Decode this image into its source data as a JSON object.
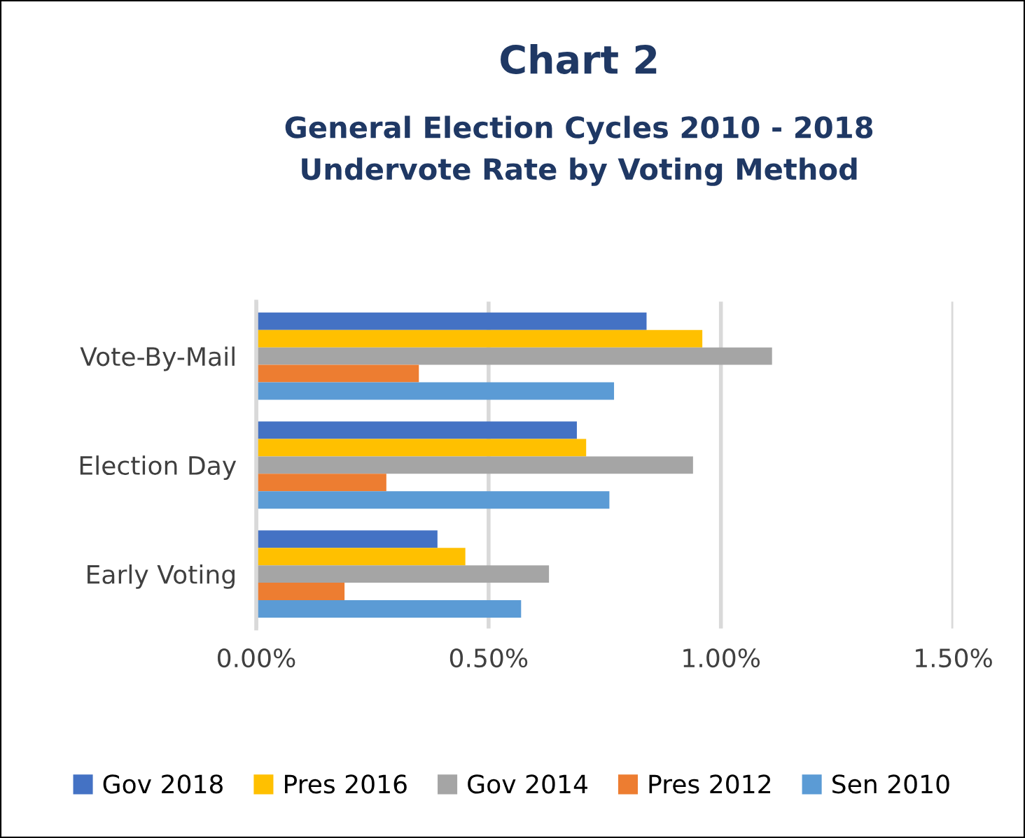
{
  "chart_data": {
    "type": "bar",
    "orientation": "horizontal",
    "title": "Chart 2",
    "subtitle": "General Election Cycles 2010 - 2018\nUndervote Rate by Voting Method",
    "categories": [
      "Vote-By-Mail",
      "Election Day",
      "Early Voting"
    ],
    "series": [
      {
        "name": "Gov 2018",
        "color": "#4472c4",
        "values": [
          0.84,
          0.69,
          0.39
        ]
      },
      {
        "name": "Pres 2016",
        "color": "#ffc000",
        "values": [
          0.96,
          0.71,
          0.45
        ]
      },
      {
        "name": "Gov 2014",
        "color": "#a5a5a5",
        "values": [
          1.11,
          0.94,
          0.63
        ]
      },
      {
        "name": "Pres 2012",
        "color": "#ed7d31",
        "values": [
          0.35,
          0.28,
          0.19
        ]
      },
      {
        "name": "Sen 2010",
        "color": "#5b9bd5",
        "values": [
          0.77,
          0.76,
          0.57
        ]
      }
    ],
    "xlim": [
      0,
      1.5
    ],
    "xticks": [
      {
        "value": 0,
        "label": "0.00%"
      },
      {
        "value": 0.5,
        "label": "0.50%"
      },
      {
        "value": 1.0,
        "label": "1.00%"
      },
      {
        "value": 1.5,
        "label": "1.50%"
      }
    ],
    "grid": "x",
    "legend": "bottom"
  }
}
